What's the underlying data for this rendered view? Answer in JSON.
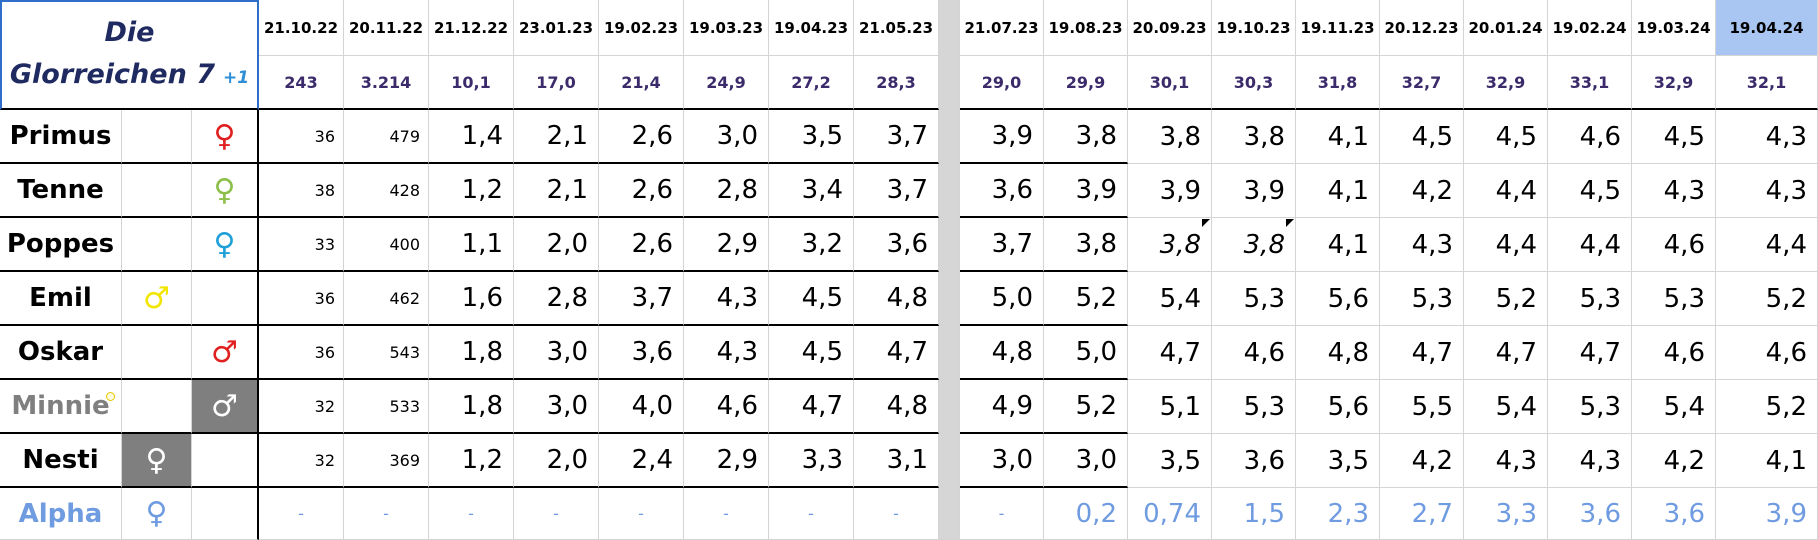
{
  "header": {
    "title_line1": "Die",
    "title_line2": "Glorreichen 7",
    "title_badge": "+1",
    "highlight_last_date": "#a9c6f2",
    "dates": [
      "21.10.22",
      "20.11.22",
      "21.12.22",
      "23.01.23",
      "19.02.23",
      "19.03.23",
      "19.04.23",
      "21.05.23",
      "21.07.23",
      "19.08.23",
      "20.09.23",
      "19.10.23",
      "19.11.23",
      "20.12.23",
      "20.01.24",
      "19.02.24",
      "19.03.24",
      "19.04.24"
    ],
    "totals": [
      "243",
      "3.214",
      "10,1",
      "17,0",
      "21,4",
      "24,9",
      "27,2",
      "28,3",
      "29,0",
      "29,9",
      "30,1",
      "30,3",
      "31,8",
      "32,7",
      "32,9",
      "33,1",
      "32,9",
      "32,1"
    ]
  },
  "rows": [
    {
      "name": "Primus",
      "name_color": "#000000",
      "symbol": "♀",
      "symbol_column": 2,
      "symbol_color": "#e02020",
      "symbol_background": "#ffffff",
      "value_color": "#000000",
      "values": [
        "36",
        "479",
        "1,4",
        "2,1",
        "2,6",
        "3,0",
        "3,5",
        "3,7",
        "3,9",
        "3,8",
        "3,8",
        "3,8",
        "4,1",
        "4,5",
        "4,5",
        "4,6",
        "4,5",
        "4,3"
      ]
    },
    {
      "name": "Tenne",
      "name_color": "#000000",
      "symbol": "♀",
      "symbol_column": 2,
      "symbol_color": "#8cc04a",
      "symbol_background": "#ffffff",
      "value_color": "#000000",
      "values": [
        "38",
        "428",
        "1,2",
        "2,1",
        "2,6",
        "2,8",
        "3,4",
        "3,7",
        "3,6",
        "3,9",
        "3,9",
        "3,9",
        "4,1",
        "4,2",
        "4,4",
        "4,5",
        "4,3",
        "4,3"
      ]
    },
    {
      "name": "Poppes",
      "name_color": "#000000",
      "symbol": "♀",
      "symbol_column": 2,
      "symbol_color": "#1fa0d8",
      "symbol_background": "#ffffff",
      "value_color": "#000000",
      "values": [
        "33",
        "400",
        "1,1",
        "2,0",
        "2,6",
        "2,9",
        "3,2",
        "3,6",
        "3,7",
        "3,8",
        "3,8",
        "3,8",
        "4,1",
        "4,3",
        "4,4",
        "4,4",
        "4,6",
        "4,4"
      ],
      "italic": [
        10,
        11
      ]
    },
    {
      "name": "Emil",
      "name_color": "#000000",
      "symbol": "♂",
      "symbol_column": 1,
      "symbol_color": "#f2e600",
      "symbol_background": "#ffffff",
      "value_color": "#000000",
      "values": [
        "36",
        "462",
        "1,6",
        "2,8",
        "3,7",
        "4,3",
        "4,5",
        "4,8",
        "5,0",
        "5,2",
        "5,4",
        "5,3",
        "5,6",
        "5,3",
        "5,2",
        "5,3",
        "5,3",
        "5,2"
      ]
    },
    {
      "name": "Oskar",
      "name_color": "#000000",
      "symbol": "♂",
      "symbol_column": 2,
      "symbol_color": "#e02020",
      "symbol_background": "#ffffff",
      "value_color": "#000000",
      "values": [
        "36",
        "543",
        "1,8",
        "3,0",
        "3,6",
        "4,3",
        "4,5",
        "4,7",
        "4,8",
        "5,0",
        "4,7",
        "4,6",
        "4,8",
        "4,7",
        "4,7",
        "4,7",
        "4,6",
        "4,6"
      ]
    },
    {
      "name": "Minnie",
      "name_color": "#7f7f7f",
      "symbol": "♂",
      "symbol_column": 2,
      "symbol_color": "#ffffff",
      "symbol_background": "#7f7f7f",
      "value_color": "#000000",
      "values": [
        "32",
        "533",
        "1,8",
        "3,0",
        "4,0",
        "4,6",
        "4,7",
        "4,8",
        "4,9",
        "5,2",
        "5,1",
        "5,3",
        "5,6",
        "5,5",
        "5,4",
        "5,3",
        "5,4",
        "5,2"
      ]
    },
    {
      "name": "Nesti",
      "name_color": "#000000",
      "symbol": "♀",
      "symbol_column": 1,
      "symbol_color": "#ffffff",
      "symbol_background": "#7f7f7f",
      "value_color": "#000000",
      "values": [
        "32",
        "369",
        "1,2",
        "2,0",
        "2,4",
        "2,9",
        "3,3",
        "3,1",
        "3,0",
        "3,0",
        "3,5",
        "3,6",
        "3,5",
        "4,2",
        "4,3",
        "4,3",
        "4,2",
        "4,1"
      ]
    },
    {
      "name": "Alpha",
      "name_color": "#6f9be0",
      "symbol": "♀",
      "symbol_column": 1,
      "symbol_color": "#6f9be0",
      "symbol_background": "#ffffff",
      "value_color": "#6f9be0",
      "values": [
        "-",
        "-",
        "-",
        "-",
        "-",
        "-",
        "-",
        "-",
        "-",
        "0,2",
        "0,74",
        "1,5",
        "2,3",
        "2,7",
        "3,3",
        "3,6",
        "3,6",
        "3,9"
      ]
    }
  ]
}
